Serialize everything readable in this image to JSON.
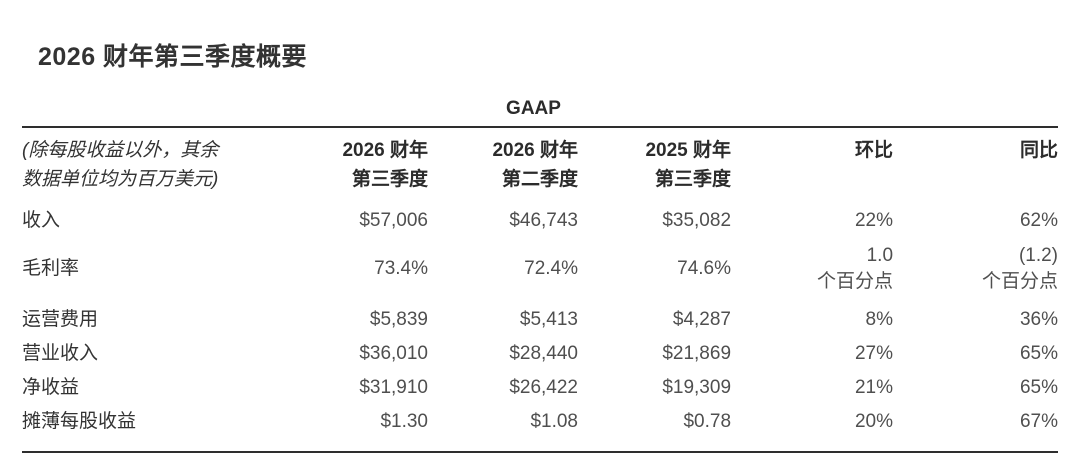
{
  "page": {
    "title": "2026 财年第三季度概要"
  },
  "table": {
    "gaap_label": "GAAP",
    "note_line1": "(除每股收益以外，其余",
    "note_line2": "数据单位均为百万美元)",
    "columns": [
      {
        "line1": "2026 财年",
        "line2": "第三季度"
      },
      {
        "line1": "2026 财年",
        "line2": "第二季度"
      },
      {
        "line1": "2025 财年",
        "line2": "第三季度"
      }
    ],
    "qoq_header": "环比",
    "yoy_header": "同比",
    "rows": [
      {
        "label": "收入",
        "values": [
          "$57,006",
          "$46,743",
          "$35,082"
        ],
        "qoq": "22%",
        "qoq_unit": "",
        "yoy": "62%",
        "yoy_unit": ""
      },
      {
        "label": "毛利率",
        "values": [
          "73.4%",
          "72.4%",
          "74.6%"
        ],
        "qoq": "1.0",
        "qoq_unit": "个百分点",
        "yoy": "(1.2)",
        "yoy_unit": "个百分点"
      },
      {
        "label": "运营费用",
        "values": [
          "$5,839",
          "$5,413",
          "$4,287"
        ],
        "qoq": "8%",
        "qoq_unit": "",
        "yoy": "36%",
        "yoy_unit": ""
      },
      {
        "label": "营业收入",
        "values": [
          "$36,010",
          "$28,440",
          "$21,869"
        ],
        "qoq": "27%",
        "qoq_unit": "",
        "yoy": "65%",
        "yoy_unit": ""
      },
      {
        "label": "净收益",
        "values": [
          "$31,910",
          "$26,422",
          "$19,309"
        ],
        "qoq": "21%",
        "qoq_unit": "",
        "yoy": "65%",
        "yoy_unit": ""
      },
      {
        "label": "摊薄每股收益",
        "values": [
          "$1.30",
          "$1.08",
          "$0.78"
        ],
        "qoq": "20%",
        "qoq_unit": "",
        "yoy": "67%",
        "yoy_unit": ""
      }
    ]
  },
  "colors": {
    "background": "#ffffff",
    "ink_strong": "#2e2e2e",
    "ink_label": "#333333",
    "ink_number": "#4f4f4f",
    "rule": "#2e2e2e"
  }
}
